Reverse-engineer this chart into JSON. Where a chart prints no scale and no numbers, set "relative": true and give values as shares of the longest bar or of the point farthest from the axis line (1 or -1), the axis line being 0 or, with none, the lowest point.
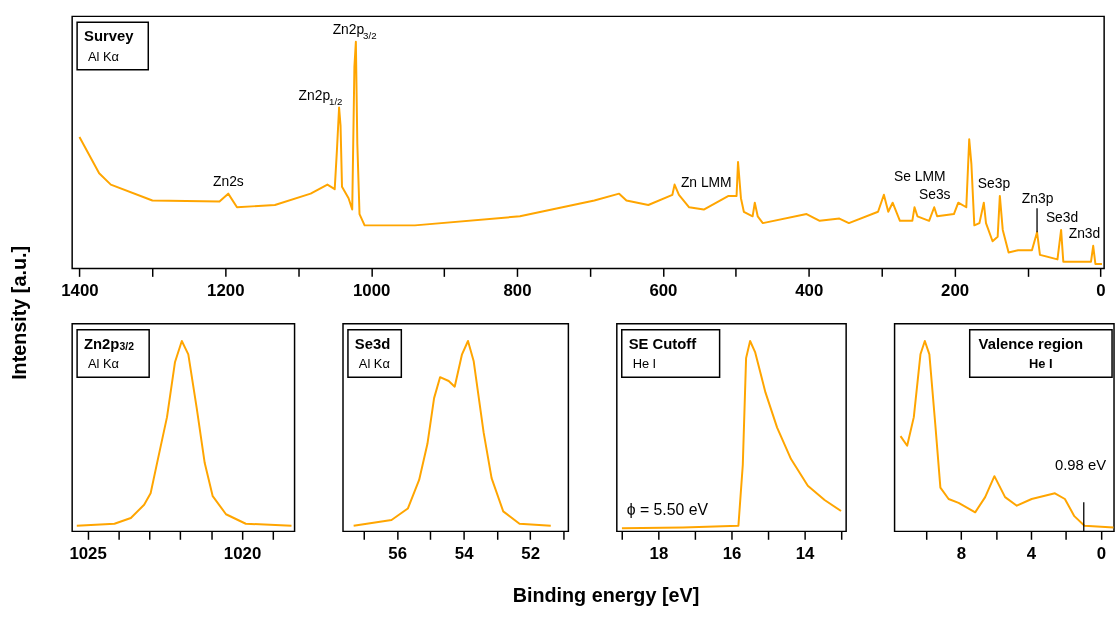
{
  "chart_data": [
    {
      "type": "line",
      "title": "Survey",
      "subtitle": "Al Kα",
      "xlabel": "Binding energy [eV]",
      "ylabel": "Intensity [a.u.]",
      "relative": true,
      "color": "#ffa500",
      "xlim": [
        1410,
        -5
      ],
      "xticks": [
        1400,
        {
          "value": 1300,
          "label": null
        },
        1200,
        {
          "value": 1100,
          "label": null
        },
        1000,
        {
          "value": 900,
          "label": null
        },
        800,
        {
          "value": 700,
          "label": null
        },
        600,
        {
          "value": 500,
          "label": null
        },
        400,
        {
          "value": 300,
          "label": null
        },
        200,
        {
          "value": 100,
          "label": null
        },
        0
      ],
      "x": [
        1400,
        1373,
        1357,
        1300,
        1208,
        1196,
        1184,
        1132,
        1083,
        1060,
        1050,
        1047,
        1044,
        1042,
        1040,
        1031,
        1026,
        1023,
        1021,
        1019,
        1016,
        1009,
        940,
        796,
        694,
        660,
        650,
        620,
        587,
        584,
        578,
        564,
        544,
        510,
        499,
        497,
        493,
        489,
        477,
        474,
        470,
        463,
        403,
        385,
        358,
        345,
        305,
        297,
        291,
        285,
        275,
        258,
        255,
        251,
        235,
        228,
        224,
        201,
        195,
        184,
        180,
        177,
        173,
        166,
        160,
        157,
        148,
        141,
        138,
        134,
        126,
        113,
        94,
        87,
        83,
        59,
        54,
        51,
        13,
        10,
        7,
        -2
      ],
      "values": [
        0.58,
        0.42,
        0.37,
        0.3,
        0.295,
        0.33,
        0.27,
        0.28,
        0.33,
        0.37,
        0.35,
        0.52,
        0.71,
        0.63,
        0.36,
        0.31,
        0.26,
        0.89,
        1.0,
        0.55,
        0.24,
        0.19,
        0.19,
        0.23,
        0.3,
        0.33,
        0.3,
        0.28,
        0.325,
        0.37,
        0.325,
        0.27,
        0.26,
        0.32,
        0.32,
        0.47,
        0.31,
        0.25,
        0.23,
        0.29,
        0.23,
        0.2,
        0.24,
        0.21,
        0.22,
        0.2,
        0.25,
        0.325,
        0.25,
        0.29,
        0.21,
        0.21,
        0.27,
        0.23,
        0.21,
        0.27,
        0.23,
        0.24,
        0.29,
        0.27,
        0.57,
        0.46,
        0.19,
        0.2,
        0.29,
        0.2,
        0.12,
        0.14,
        0.32,
        0.17,
        0.07,
        0.08,
        0.08,
        0.16,
        0.06,
        0.04,
        0.17,
        0.03,
        0.03,
        0.1,
        0.02,
        0.02
      ],
      "annotations": [
        {
          "text": "Zn2s",
          "x": 1196,
          "y": 0.33
        },
        {
          "text": "Zn2p$_{1/2}$",
          "x": 1044,
          "y": 0.71
        },
        {
          "text": "Zn2p$_{3/2}$",
          "x": 1021,
          "y": 1.0
        },
        {
          "text": "Zn LMM",
          "x": 544,
          "y": 0.26
        },
        {
          "text": "Se LMM",
          "x": 275,
          "y": 0.21
        },
        {
          "text": "Se3s",
          "x": 228,
          "y": 0.27
        },
        {
          "text": "Se3p",
          "x": 160,
          "y": 0.29
        },
        {
          "text": "Zn3p",
          "x": 87,
          "y": 0.16
        },
        {
          "text": "Se3d",
          "x": 54,
          "y": 0.17
        },
        {
          "text": "Zn3d",
          "x": 10,
          "y": 0.1
        }
      ]
    },
    {
      "type": "line",
      "title": "Zn2p$_{3/2}$",
      "subtitle": "Al Kα",
      "relative": true,
      "color": "#ffa500",
      "xlim": [
        1025.5,
        1018.3
      ],
      "xticks": [
        1025,
        {
          "value": 1024,
          "label": null
        },
        {
          "value": 1023,
          "label": null
        },
        {
          "value": 1022,
          "label": null
        },
        {
          "value": 1021,
          "label": null
        },
        1020,
        {
          "value": 1019,
          "label": null
        }
      ],
      "x": [
        1025.35,
        1024.13,
        1023.6,
        1023.17,
        1022.96,
        1022.75,
        1022.43,
        1022.17,
        1021.95,
        1021.74,
        1021.47,
        1021.21,
        1020.95,
        1020.52,
        1019.88,
        1018.4
      ],
      "values": [
        0.03,
        0.04,
        0.07,
        0.14,
        0.2,
        0.36,
        0.6,
        0.89,
        1.0,
        0.93,
        0.65,
        0.36,
        0.185,
        0.09,
        0.04,
        0.03
      ]
    },
    {
      "type": "line",
      "title": "Se3d",
      "subtitle": "Al Kα",
      "relative": true,
      "color": "#ffa500",
      "xlim": [
        57.63,
        50.85
      ],
      "xticks": [
        {
          "value": 57,
          "label": null
        },
        56,
        {
          "value": 55,
          "label": null
        },
        54,
        {
          "value": 53,
          "label": null
        },
        52,
        {
          "value": 51,
          "label": null
        }
      ],
      "x": [
        57.31,
        56.17,
        55.68,
        55.34,
        55.09,
        54.89,
        54.71,
        54.45,
        54.27,
        54.05,
        53.87,
        53.7,
        53.4,
        53.16,
        52.81,
        52.32,
        51.38
      ],
      "values": [
        0.03,
        0.06,
        0.12,
        0.27,
        0.46,
        0.7,
        0.81,
        0.79,
        0.76,
        0.93,
        1.0,
        0.895,
        0.52,
        0.28,
        0.105,
        0.04,
        0.03
      ]
    },
    {
      "type": "line",
      "title": "SE Cutoff",
      "subtitle": "He I",
      "relative": true,
      "color": "#ffa500",
      "xlim": [
        19.14,
        12.86
      ],
      "xticks": [
        {
          "value": 19,
          "label": null
        },
        18,
        {
          "value": 17,
          "label": null
        },
        16,
        {
          "value": 15,
          "label": null
        },
        14,
        {
          "value": 13,
          "label": null
        }
      ],
      "x": [
        19.0,
        17.33,
        15.81,
        15.69,
        15.6,
        15.49,
        15.35,
        15.07,
        14.75,
        14.37,
        13.91,
        13.45,
        13.0
      ],
      "values": [
        0.016,
        0.02,
        0.03,
        0.35,
        0.91,
        1.0,
        0.94,
        0.73,
        0.545,
        0.38,
        0.24,
        0.165,
        0.107
      ],
      "annotations": [
        "ϕ = 5.50 eV"
      ]
    },
    {
      "type": "line",
      "title": "Valence region",
      "subtitle": "He I",
      "relative": true,
      "color": "#ffa500",
      "xlim": [
        11.8,
        -0.75
      ],
      "xticks": [
        {
          "value": 10,
          "label": null
        },
        8,
        {
          "value": 6,
          "label": null
        },
        4,
        {
          "value": 2,
          "label": null
        },
        0
      ],
      "x": [
        11.46,
        11.08,
        10.7,
        10.32,
        10.07,
        9.81,
        9.47,
        9.18,
        8.71,
        8.14,
        7.19,
        6.62,
        6.09,
        5.48,
        4.81,
        3.96,
        2.63,
        2.06,
        1.52,
        0.94,
        -0.72
      ],
      "values": [
        0.5,
        0.45,
        0.6,
        0.93,
        1.0,
        0.93,
        0.56,
        0.23,
        0.17,
        0.15,
        0.1,
        0.18,
        0.29,
        0.18,
        0.135,
        0.17,
        0.2,
        0.17,
        0.08,
        0.03,
        0.02
      ],
      "ref_lines": [
        {
          "axis": "x",
          "value": 0.98,
          "label": "0.98 eV"
        }
      ]
    }
  ]
}
